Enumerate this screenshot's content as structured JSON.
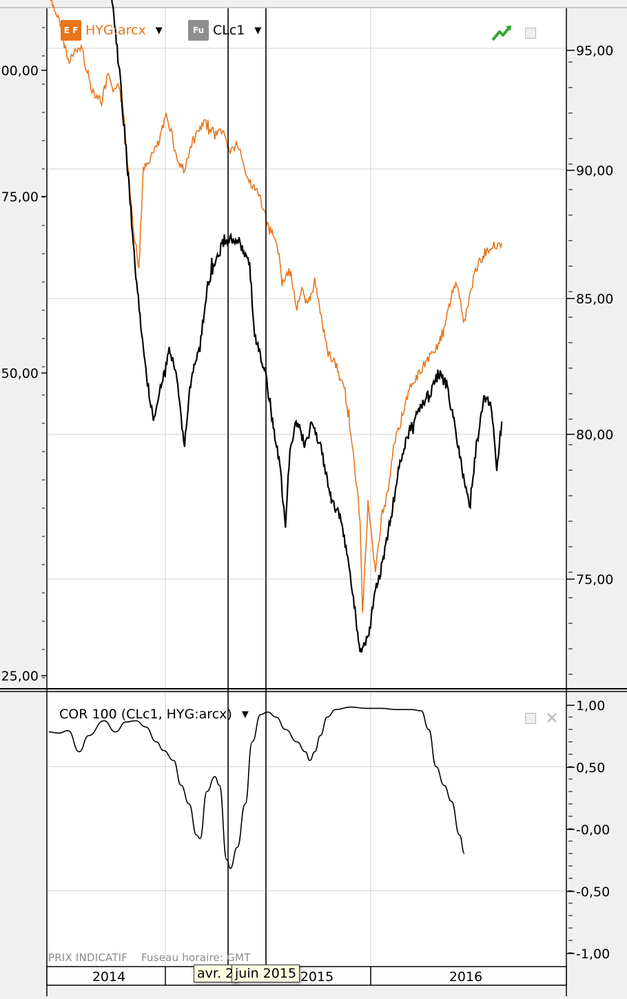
{
  "colors": {
    "hyg": "#e8751a",
    "clc1": "#000000",
    "grid": "#d2d2d2",
    "plot_bg": "#ffffff"
  },
  "legend": {
    "hyg": {
      "label": "HYG:arcx",
      "icon": "etf-icon",
      "badge": "E F"
    },
    "clc1": {
      "label": "CLc1",
      "icon": "futures-icon",
      "badge": "Fu"
    }
  },
  "lower": {
    "label": "COR 100 (CLc1, HYG:arcx)"
  },
  "footer": {
    "indicative": "PRIX INDICATIF",
    "timezone": "Fuseau horaire: GMT"
  },
  "cursor_tips": {
    "left": "avr. 2",
    "right": "juin 2015"
  },
  "chart_data": [
    {
      "type": "line",
      "title": "",
      "x_axis_labels": [
        "2014",
        "2015",
        "2016"
      ],
      "left_axis": {
        "ticks": [
          "00,00",
          "75,00",
          "50,00",
          "25,00"
        ],
        "ylim": [
          24,
          106
        ]
      },
      "right_axis": {
        "ticks": [
          "95,00",
          "90,00",
          "85,00",
          "80,00",
          "75,00"
        ],
        "ylim": [
          71.5,
          97.2
        ]
      },
      "series": [
        {
          "name": "CLc1",
          "axis": "left",
          "points": [
            [
              "2013-11-01",
              104
            ],
            [
              "2013-11-20",
              99
            ],
            [
              "2013-12-10",
              97
            ],
            [
              "2014-01-05",
              93
            ],
            [
              "2014-02-01",
              89
            ],
            [
              "2014-02-20",
              84
            ],
            [
              "2014-03-10",
              80
            ],
            [
              "2014-03-25",
              74
            ],
            [
              "2014-04-10",
              66
            ],
            [
              "2014-04-25",
              58
            ],
            [
              "2014-05-15",
              50
            ],
            [
              "2014-06-01",
              46
            ],
            [
              "2014-06-15",
              49
            ],
            [
              "2014-07-01",
              52
            ],
            [
              "2014-07-15",
              50
            ],
            [
              "2014-08-01",
              44
            ],
            [
              "2014-08-15",
              50
            ],
            [
              "2014-09-01",
              52
            ],
            [
              "2014-09-15",
              57
            ],
            [
              "2014-10-01",
              59
            ],
            [
              "2014-10-20",
              61
            ],
            [
              "2014-11-15",
              61
            ],
            [
              "2014-12-10",
              59
            ],
            [
              "2014-12-20",
              53
            ],
            [
              "2015-01-10",
              50
            ],
            [
              "2015-01-25",
              46
            ],
            [
              "2015-02-10",
              42
            ],
            [
              "2015-02-20",
              37
            ],
            [
              "2015-03-01",
              44
            ],
            [
              "2015-03-15",
              46
            ],
            [
              "2015-04-01",
              44
            ],
            [
              "2015-04-15",
              46
            ],
            [
              "2015-05-01",
              44
            ],
            [
              "2015-05-20",
              40
            ],
            [
              "2015-06-10",
              38
            ],
            [
              "2015-06-25",
              35
            ],
            [
              "2015-07-05",
              32
            ],
            [
              "2015-07-20",
              27
            ],
            [
              "2015-08-05",
              28
            ],
            [
              "2015-08-20",
              32
            ],
            [
              "2015-09-01",
              34
            ],
            [
              "2015-09-20",
              38
            ],
            [
              "2015-10-05",
              42
            ],
            [
              "2015-10-25",
              45
            ],
            [
              "2015-11-15",
              47
            ],
            [
              "2015-12-05",
              48
            ],
            [
              "2015-12-25",
              50
            ],
            [
              "2016-01-10",
              49
            ],
            [
              "2016-01-25",
              46
            ],
            [
              "2016-02-10",
              42
            ],
            [
              "2016-02-25",
              39
            ],
            [
              "2016-03-10",
              44
            ],
            [
              "2016-03-25",
              48
            ],
            [
              "2016-04-10",
              47
            ],
            [
              "2016-04-20",
              42
            ],
            [
              "2016-04-30",
              46
            ]
          ]
        },
        {
          "name": "HYG:arcx",
          "axis": "right",
          "points": [
            [
              "2013-11-01",
              95.8
            ],
            [
              "2013-11-20",
              95.0
            ],
            [
              "2013-12-10",
              93.5
            ],
            [
              "2014-01-05",
              94.0
            ],
            [
              "2014-01-25",
              92.5
            ],
            [
              "2014-02-15",
              92.0
            ],
            [
              "2014-03-01",
              93.0
            ],
            [
              "2014-03-10",
              92.2
            ],
            [
              "2014-03-20",
              92.8
            ],
            [
              "2014-04-01",
              91.5
            ],
            [
              "2014-04-10",
              89.5
            ],
            [
              "2014-04-20",
              87.5
            ],
            [
              "2014-05-01",
              86.0
            ],
            [
              "2014-05-10",
              89.5
            ],
            [
              "2014-05-25",
              90.0
            ],
            [
              "2014-06-10",
              90.5
            ],
            [
              "2014-06-25",
              91.5
            ],
            [
              "2014-07-05",
              91.0
            ],
            [
              "2014-07-15",
              90.0
            ],
            [
              "2014-08-01",
              89.5
            ],
            [
              "2014-08-15",
              90.5
            ],
            [
              "2014-09-01",
              91.0
            ],
            [
              "2014-09-15",
              91.3
            ],
            [
              "2014-10-01",
              90.8
            ],
            [
              "2014-10-15",
              91.0
            ],
            [
              "2014-11-01",
              90.2
            ],
            [
              "2014-11-15",
              90.5
            ],
            [
              "2014-12-01",
              89.5
            ],
            [
              "2014-12-15",
              89.0
            ],
            [
              "2015-01-01",
              88.5
            ],
            [
              "2015-01-15",
              87.5
            ],
            [
              "2015-02-01",
              87.0
            ],
            [
              "2015-02-15",
              85.5
            ],
            [
              "2015-03-01",
              86.0
            ],
            [
              "2015-03-15",
              84.5
            ],
            [
              "2015-03-25",
              85.2
            ],
            [
              "2015-04-05",
              84.6
            ],
            [
              "2015-04-20",
              85.5
            ],
            [
              "2015-05-01",
              84.5
            ],
            [
              "2015-05-15",
              83.0
            ],
            [
              "2015-06-01",
              82.5
            ],
            [
              "2015-06-20",
              81.5
            ],
            [
              "2015-07-05",
              79.5
            ],
            [
              "2015-07-20",
              77.0
            ],
            [
              "2015-07-25",
              73.5
            ],
            [
              "2015-08-05",
              77.5
            ],
            [
              "2015-08-20",
              75.0
            ],
            [
              "2015-09-01",
              77.0
            ],
            [
              "2015-09-15",
              78.0
            ],
            [
              "2015-09-25",
              79.5
            ],
            [
              "2015-10-10",
              80.5
            ],
            [
              "2015-10-25",
              81.5
            ],
            [
              "2015-11-10",
              82.0
            ],
            [
              "2015-11-25",
              82.5
            ],
            [
              "2015-12-15",
              83.0
            ],
            [
              "2016-01-01",
              83.5
            ],
            [
              "2016-01-15",
              84.5
            ],
            [
              "2016-01-25",
              85.5
            ],
            [
              "2016-02-05",
              85.0
            ],
            [
              "2016-02-15",
              84.0
            ],
            [
              "2016-02-25",
              85.0
            ],
            [
              "2016-03-10",
              86.0
            ],
            [
              "2016-03-25",
              86.5
            ],
            [
              "2016-04-10",
              86.8
            ],
            [
              "2016-04-30",
              86.9
            ]
          ]
        }
      ]
    },
    {
      "type": "line",
      "title": "COR 100 (CLc1, HYG:arcx)",
      "ylim": [
        -1.05,
        1.05
      ],
      "y_ticks": [
        "1,00",
        "0,50",
        "-0,00",
        "-0,50",
        "-1,00"
      ],
      "series": [
        {
          "name": "COR 100 (CLc1, HYG:arcx)",
          "points": [
            [
              "2013-11-01",
              0.78
            ],
            [
              "2013-11-20",
              0.77
            ],
            [
              "2013-12-10",
              0.79
            ],
            [
              "2014-01-01",
              0.62
            ],
            [
              "2014-01-20",
              0.75
            ],
            [
              "2014-02-20",
              0.87
            ],
            [
              "2014-03-15",
              0.78
            ],
            [
              "2014-04-05",
              0.86
            ],
            [
              "2014-04-25",
              0.87
            ],
            [
              "2014-05-15",
              0.82
            ],
            [
              "2014-06-05",
              0.7
            ],
            [
              "2014-06-20",
              0.63
            ],
            [
              "2014-07-10",
              0.55
            ],
            [
              "2014-07-25",
              0.35
            ],
            [
              "2014-08-10",
              0.2
            ],
            [
              "2014-08-25",
              -0.05
            ],
            [
              "2014-09-01",
              -0.08
            ],
            [
              "2014-09-15",
              0.3
            ],
            [
              "2014-10-01",
              0.42
            ],
            [
              "2014-10-10",
              0.35
            ],
            [
              "2014-10-25",
              -0.25
            ],
            [
              "2014-11-01",
              -0.32
            ],
            [
              "2014-11-15",
              -0.15
            ],
            [
              "2014-12-01",
              0.2
            ],
            [
              "2014-12-15",
              0.7
            ],
            [
              "2015-01-01",
              0.92
            ],
            [
              "2015-01-15",
              0.94
            ],
            [
              "2015-02-01",
              0.9
            ],
            [
              "2015-02-20",
              0.8
            ],
            [
              "2015-03-15",
              0.7
            ],
            [
              "2015-04-01",
              0.62
            ],
            [
              "2015-04-10",
              0.55
            ],
            [
              "2015-04-20",
              0.62
            ],
            [
              "2015-05-01",
              0.75
            ],
            [
              "2015-05-15",
              0.9
            ],
            [
              "2015-06-01",
              0.96
            ],
            [
              "2015-07-01",
              0.98
            ],
            [
              "2015-08-01",
              0.97
            ],
            [
              "2015-09-01",
              0.97
            ],
            [
              "2015-10-01",
              0.96
            ],
            [
              "2015-11-01",
              0.96
            ],
            [
              "2015-11-20",
              0.95
            ],
            [
              "2015-12-05",
              0.8
            ],
            [
              "2015-12-20",
              0.5
            ],
            [
              "2016-01-05",
              0.35
            ],
            [
              "2016-01-20",
              0.22
            ],
            [
              "2016-02-05",
              -0.05
            ],
            [
              "2016-02-15",
              -0.2
            ]
          ]
        }
      ]
    }
  ]
}
